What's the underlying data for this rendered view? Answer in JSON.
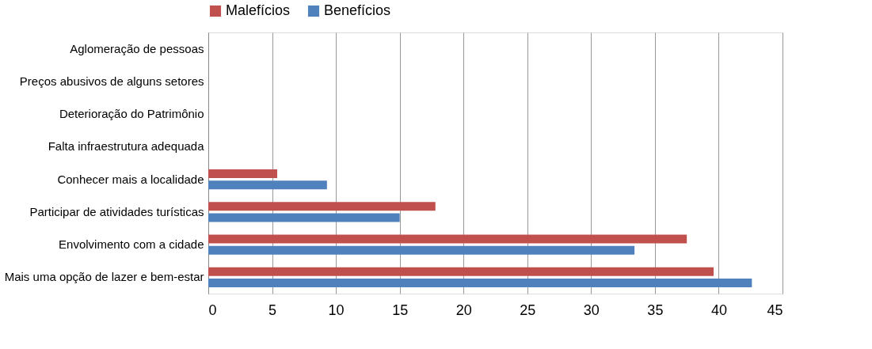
{
  "chart_data": {
    "type": "bar",
    "orientation": "horizontal",
    "categories": [
      "Aglomeração de pessoas",
      "Preços abusivos de alguns setores",
      "Deterioração do Patrimônio",
      "Falta infraestrutura adequada",
      "Conhecer mais a localidade",
      "Participar de atividades turísticas",
      "Envolvimento com a cidade",
      "Mais uma opção de lazer e bem-estar"
    ],
    "series": [
      {
        "name": "Malefícios",
        "color": "#c0504d",
        "values": [
          null,
          null,
          null,
          null,
          5.4,
          17.8,
          37.5,
          39.6
        ]
      },
      {
        "name": "Benefícios",
        "color": "#4f81bd",
        "values": [
          null,
          null,
          null,
          null,
          9.3,
          15.0,
          33.4,
          42.6
        ]
      }
    ],
    "xlim": [
      0,
      45
    ],
    "xticks": [
      0,
      5,
      10,
      15,
      20,
      25,
      30,
      35,
      40,
      45
    ],
    "grid": "x",
    "legend": "top"
  }
}
